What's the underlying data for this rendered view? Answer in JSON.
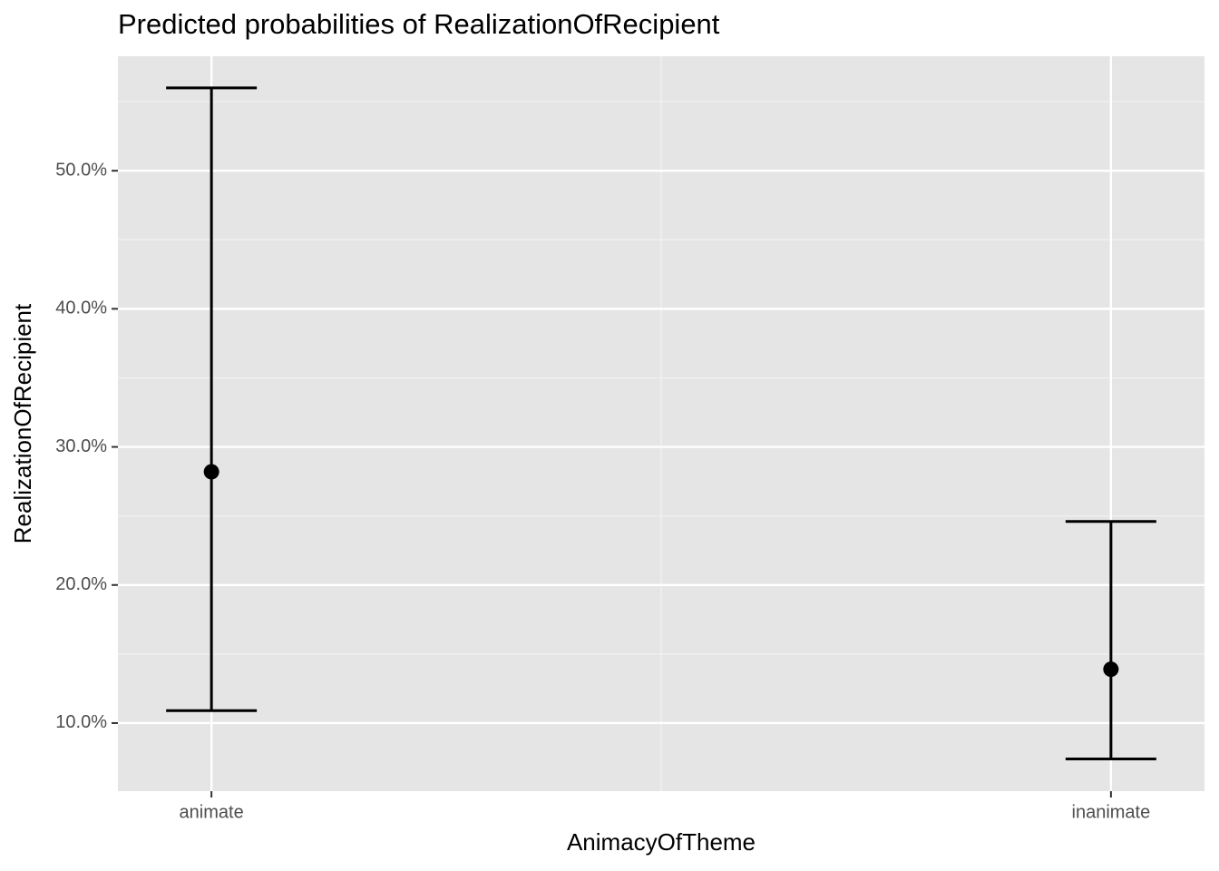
{
  "chart_data": {
    "type": "pointrange",
    "title": "Predicted probabilities of RealizationOfRecipient",
    "x_label": "AnimacyOfTheme",
    "y_label": "RealizationOfRecipient",
    "categories": [
      "animate",
      "inanimate"
    ],
    "values": [
      28.2,
      13.9
    ],
    "lower": [
      10.9,
      7.4
    ],
    "upper": [
      56.0,
      24.6
    ],
    "color": "#000000",
    "ylim": [
      5.07,
      58.29
    ],
    "yticks": [
      {
        "value": 10,
        "label": "10.0%"
      },
      {
        "value": 20,
        "label": "20.0%"
      },
      {
        "value": 30,
        "label": "30.0%"
      },
      {
        "value": 40,
        "label": "40.0%"
      },
      {
        "value": 50,
        "label": "50.0%"
      }
    ],
    "minor_yticks": [
      15,
      25,
      35,
      45,
      55
    ],
    "grid": true
  }
}
